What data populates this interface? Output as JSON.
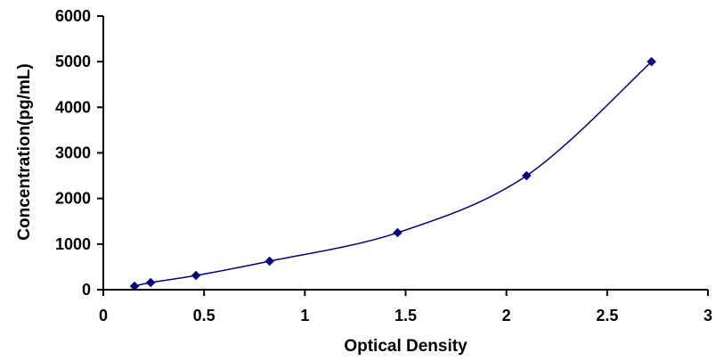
{
  "chart_data": {
    "type": "scatter",
    "title": "",
    "xlabel": "Optical Density",
    "ylabel": "Concentration(pg/mL)",
    "xlim": [
      0,
      3
    ],
    "ylim": [
      0,
      6000
    ],
    "x_ticks": [
      0,
      0.5,
      1,
      1.5,
      2,
      2.5,
      3
    ],
    "x_tick_labels": [
      "0",
      "0.5",
      "1",
      "1.5",
      "2",
      "2.5",
      "3"
    ],
    "y_ticks": [
      0,
      1000,
      2000,
      3000,
      4000,
      5000,
      6000
    ],
    "y_tick_labels": [
      "0",
      "1000",
      "2000",
      "3000",
      "4000",
      "5000",
      "6000"
    ],
    "grid": false,
    "legend": "none",
    "smooth_line": true,
    "series": [
      {
        "color": "#000080",
        "marker": "diamond",
        "points": [
          {
            "x": 0.155,
            "y": 78
          },
          {
            "x": 0.235,
            "y": 156
          },
          {
            "x": 0.46,
            "y": 312
          },
          {
            "x": 0.825,
            "y": 625
          },
          {
            "x": 1.46,
            "y": 1250
          },
          {
            "x": 2.1,
            "y": 2500
          },
          {
            "x": 2.72,
            "y": 5000
          }
        ]
      }
    ]
  }
}
